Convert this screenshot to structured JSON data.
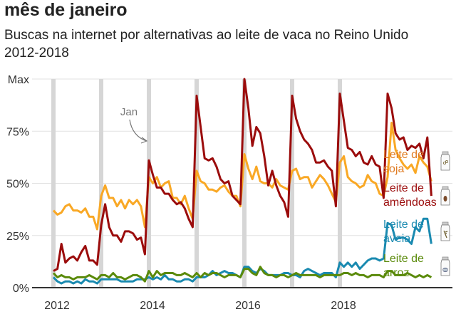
{
  "header": {
    "title": "mês de janeiro",
    "subtitle": "Buscas na internet por alternativas ao leite de vaca no Reino Unido 2012-2018"
  },
  "annotation": {
    "text": "Jan"
  },
  "chart_data": {
    "type": "line",
    "title": "mês de janeiro",
    "subtitle": "Buscas na internet por alternativas ao leite de vaca no Reino Unido 2012-2018",
    "xlabel": "",
    "ylabel": "",
    "x_start": "2012-01",
    "x_step": "month",
    "x_ticks": [
      "2012",
      "2014",
      "2016",
      "2018"
    ],
    "y_ticks": [
      "0%",
      "25%",
      "50%",
      "75%",
      "Max"
    ],
    "y_tick_values": [
      0,
      25,
      50,
      75,
      100
    ],
    "ylim": [
      0,
      100
    ],
    "grid": true,
    "january_markers": [
      "2012",
      "2013",
      "2014",
      "2015",
      "2016",
      "2017",
      "2018"
    ],
    "legend": "right",
    "series": [
      {
        "name": "Leite de soja",
        "color": "#f9a825",
        "label_color": "#e07b22",
        "label_lines": [
          "Leite de",
          "soja"
        ],
        "icon": "bottle-soy-icon",
        "values": [
          37,
          35,
          36,
          39,
          40,
          37,
          37,
          36,
          38,
          34,
          34,
          28,
          44,
          49,
          43,
          43,
          39,
          42,
          38,
          42,
          40,
          42,
          39,
          29,
          53,
          50,
          53,
          48,
          50,
          51,
          43,
          43,
          40,
          44,
          38,
          33,
          56,
          51,
          50,
          47,
          47,
          46,
          48,
          49,
          46,
          44,
          44,
          39,
          64,
          57,
          52,
          58,
          51,
          50,
          50,
          48,
          52,
          49,
          48,
          47,
          56,
          57,
          52,
          53,
          53,
          48,
          51,
          54,
          52,
          49,
          45,
          41,
          60,
          63,
          53,
          51,
          50,
          48,
          49,
          54,
          51,
          50,
          45,
          44,
          53,
          79,
          66,
          62,
          59,
          57,
          59,
          55,
          63,
          60,
          58,
          51
        ]
      },
      {
        "name": "Leite de amêndoas",
        "color": "#9b0c0c",
        "label_color": "#9b0c0c",
        "label_lines": [
          "Leite de",
          "amêndoas"
        ],
        "icon": "bottle-almond-icon",
        "values": [
          8,
          9,
          21,
          12,
          14,
          15,
          13,
          17,
          20,
          13,
          13,
          11,
          30,
          40,
          29,
          25,
          25,
          22,
          27,
          27,
          26,
          23,
          24,
          16,
          61,
          54,
          48,
          48,
          45,
          45,
          42,
          40,
          41,
          38,
          33,
          29,
          92,
          77,
          62,
          61,
          62,
          58,
          52,
          50,
          51,
          44,
          42,
          40,
          100,
          86,
          68,
          77,
          74,
          63,
          49,
          56,
          49,
          44,
          41,
          34,
          92,
          81,
          75,
          71,
          69,
          66,
          60,
          60,
          61,
          58,
          56,
          39,
          93,
          80,
          67,
          66,
          63,
          65,
          60,
          59,
          63,
          59,
          58,
          43,
          93,
          86,
          74,
          71,
          72,
          66,
          68,
          67,
          69,
          62,
          72,
          44
        ]
      },
      {
        "name": "Leite de aveia",
        "color": "#1a8ab0",
        "label_color": "#1a8ab0",
        "label_lines": [
          "Leite de",
          "aveia"
        ],
        "icon": "bottle-oat-icon",
        "values": [
          5,
          3,
          2,
          3,
          3,
          2,
          3,
          2,
          4,
          3,
          3,
          2,
          4,
          4,
          4,
          4,
          4,
          3,
          3,
          3,
          3,
          4,
          4,
          4,
          5,
          4,
          5,
          4,
          6,
          4,
          4,
          3,
          3,
          4,
          4,
          3,
          5,
          5,
          5,
          6,
          8,
          6,
          7,
          8,
          7,
          7,
          6,
          5,
          10,
          10,
          8,
          7,
          9,
          8,
          6,
          6,
          6,
          6,
          7,
          7,
          6,
          6,
          5,
          8,
          9,
          8,
          7,
          6,
          7,
          7,
          7,
          5,
          12,
          10,
          12,
          10,
          12,
          9,
          11,
          13,
          14,
          14,
          13,
          14,
          31,
          30,
          23,
          24,
          24,
          23,
          21,
          29,
          27,
          33,
          33,
          21
        ]
      },
      {
        "name": "Leite de arroz",
        "color": "#5a8a0a",
        "label_color": "#5a8a0a",
        "label_lines": [
          "Leite de",
          "arroz"
        ],
        "icon": "bottle-rice-icon",
        "values": [
          7,
          5,
          6,
          5,
          5,
          4,
          5,
          5,
          5,
          6,
          5,
          4,
          6,
          6,
          5,
          7,
          5,
          5,
          4,
          5,
          6,
          6,
          5,
          3,
          8,
          5,
          8,
          6,
          7,
          7,
          7,
          6,
          6,
          7,
          6,
          5,
          7,
          5,
          7,
          6,
          7,
          7,
          6,
          5,
          6,
          6,
          6,
          5,
          9,
          9,
          7,
          6,
          10,
          7,
          6,
          6,
          5,
          6,
          6,
          5,
          6,
          7,
          6,
          6,
          6,
          6,
          6,
          5,
          6,
          6,
          6,
          6,
          6,
          7,
          7,
          6,
          7,
          6,
          6,
          5,
          6,
          6,
          6,
          5,
          8,
          8,
          6,
          6,
          6,
          7,
          6,
          5,
          6,
          5,
          6,
          5
        ]
      }
    ]
  }
}
